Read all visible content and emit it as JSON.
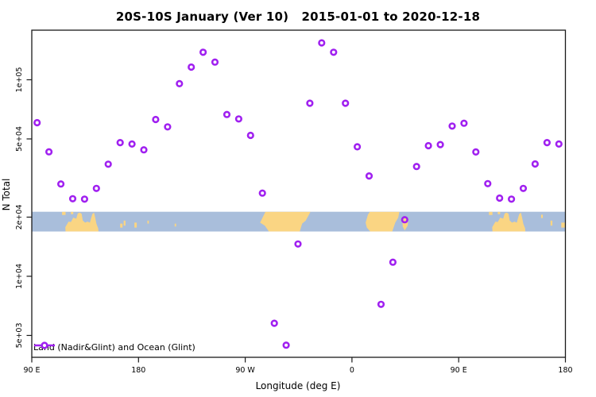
{
  "title": "20S-10S January (Ver 10)   2015-01-01 to 2020-12-18",
  "legend": {
    "label": "Land (Nadir&Glint) and Ocean (Glint)"
  },
  "chart_data": {
    "type": "scatter",
    "title": "20S-10S January (Ver 10)   2015-01-01 to 2020-12-18",
    "xlabel": "Longitude (deg E)",
    "ylabel": "N Total",
    "grid": false,
    "legend_position": "bottom-left",
    "marker": {
      "shape": "open-circle",
      "color": "#A020F0",
      "radius": 3.3,
      "stroke_width": 2.6
    },
    "x_axis": {
      "range": [
        90,
        540
      ],
      "ticks": [
        {
          "value": 90,
          "label": "90 E"
        },
        {
          "value": 180,
          "label": "180"
        },
        {
          "value": 270,
          "label": "90 W"
        },
        {
          "value": 360,
          "label": "0"
        },
        {
          "value": 450,
          "label": "90 E"
        },
        {
          "value": 540,
          "label": "180"
        }
      ]
    },
    "y_axis": {
      "scale": "log",
      "range": [
        3870,
        178800
      ],
      "ticks": [
        {
          "value": 100000,
          "label": "1e+05"
        },
        {
          "value": 50000,
          "label": "5e+04"
        },
        {
          "value": 20000,
          "label": "2e+04"
        },
        {
          "value": 10000,
          "label": "1e+04"
        },
        {
          "value": 5000,
          "label": "5e+03"
        }
      ]
    },
    "series": [
      {
        "name": "Land (Nadir&Glint) and Ocean (Glint)",
        "points": [
          [
            94.5,
            60500
          ],
          [
            104.5,
            43000
          ],
          [
            114.5,
            29500
          ],
          [
            124.5,
            24800
          ],
          [
            134.5,
            24700
          ],
          [
            144.5,
            28000
          ],
          [
            154.5,
            37200
          ],
          [
            164.5,
            47900
          ],
          [
            174.5,
            47100
          ],
          [
            184.5,
            44000
          ],
          [
            194.5,
            62800
          ],
          [
            204.5,
            57600
          ],
          [
            214.5,
            95500
          ],
          [
            224.5,
            116000
          ],
          [
            234.5,
            138000
          ],
          [
            244.5,
            123000
          ],
          [
            254.5,
            66600
          ],
          [
            264.5,
            63200
          ],
          [
            274.5,
            52100
          ],
          [
            284.5,
            26500
          ],
          [
            294.5,
            5770
          ],
          [
            304.5,
            4460
          ],
          [
            314.5,
            14600
          ],
          [
            324.5,
            76000
          ],
          [
            334.5,
            154000
          ],
          [
            344.5,
            138000
          ],
          [
            354.5,
            76000
          ],
          [
            364.5,
            45600
          ],
          [
            374.5,
            32400
          ],
          [
            384.5,
            7200
          ],
          [
            394.5,
            11800
          ],
          [
            404.5,
            19400
          ],
          [
            414.5,
            36200
          ],
          [
            424.5,
            46200
          ],
          [
            434.5,
            46800
          ],
          [
            444.5,
            58100
          ],
          [
            454.5,
            60100
          ],
          [
            464.5,
            42900
          ],
          [
            474.5,
            29600
          ],
          [
            484.5,
            25000
          ],
          [
            494.5,
            24700
          ],
          [
            504.5,
            28000
          ],
          [
            514.5,
            37300
          ],
          [
            524.5,
            47900
          ],
          [
            534.5,
            47100
          ]
        ]
      }
    ],
    "map_band": {
      "description": "20S-10S latitude strip of Earth drawn across the plot",
      "value_top": 21300,
      "value_bottom": 16900,
      "ocean_color": "#A9BEDB",
      "land_color": "#FAD583",
      "land_patches": [
        {
          "name": "timor-islands",
          "poly": [
            [
              115.5,
              0
            ],
            [
              118.5,
              0
            ],
            [
              118.5,
              0.16
            ],
            [
              115.5,
              0.16
            ]
          ]
        },
        {
          "name": "timor-islands-b",
          "poly": [
            [
              123,
              0
            ],
            [
              125,
              0
            ],
            [
              125,
              0.12
            ],
            [
              123,
              0.12
            ]
          ]
        },
        {
          "name": "australia",
          "poly": [
            [
              118.5,
              1
            ],
            [
              118.3,
              0.78
            ],
            [
              121,
              0.5
            ],
            [
              123,
              0.52
            ],
            [
              125,
              0.3
            ],
            [
              127.5,
              0.35
            ],
            [
              128.8,
              0.08
            ],
            [
              130.5,
              0.04
            ],
            [
              132,
              0.1
            ],
            [
              133,
              0.45
            ],
            [
              135,
              0.55
            ],
            [
              137,
              0.5
            ],
            [
              139,
              0.55
            ],
            [
              141,
              0.12
            ],
            [
              142.5,
              0.04
            ],
            [
              143.5,
              0.3
            ],
            [
              144.5,
              0.6
            ],
            [
              146,
              0.85
            ],
            [
              146.2,
              1
            ]
          ]
        },
        {
          "name": "new-caledonia",
          "poly": [
            [
              164.5,
              0.6
            ],
            [
              166.5,
              0.6
            ],
            [
              166.5,
              0.8
            ],
            [
              164.5,
              0.8
            ]
          ]
        },
        {
          "name": "vanuatu",
          "poly": [
            [
              167.5,
              0.45
            ],
            [
              169,
              0.45
            ],
            [
              169,
              0.7
            ],
            [
              167.5,
              0.7
            ]
          ]
        },
        {
          "name": "fiji",
          "poly": [
            [
              176.5,
              0.55
            ],
            [
              178.5,
              0.55
            ],
            [
              178.5,
              0.8
            ],
            [
              176.5,
              0.8
            ]
          ]
        },
        {
          "name": "samoa",
          "poly": [
            [
              187.5,
              0.45
            ],
            [
              188.7,
              0.45
            ],
            [
              188.7,
              0.6
            ],
            [
              187.5,
              0.6
            ]
          ]
        },
        {
          "name": "tahiti",
          "poly": [
            [
              210.5,
              0.6
            ],
            [
              211.7,
              0.6
            ],
            [
              211.7,
              0.75
            ],
            [
              210.5,
              0.75
            ]
          ]
        },
        {
          "name": "south-america",
          "poly": [
            [
              287,
              0
            ],
            [
              325,
              0
            ],
            [
              321,
              0.45
            ],
            [
              318,
              0.6
            ],
            [
              316,
              1
            ],
            [
              290,
              1
            ],
            [
              286.5,
              0.7
            ],
            [
              282.5,
              0.55
            ],
            [
              285,
              0.25
            ]
          ]
        },
        {
          "name": "africa",
          "poly": [
            [
              375,
              0
            ],
            [
              400,
              0
            ],
            [
              399,
              0.3
            ],
            [
              396.5,
              0.55
            ],
            [
              394,
              1
            ],
            [
              375.5,
              1
            ],
            [
              372.5,
              0.8
            ],
            [
              371.5,
              0.55
            ],
            [
              373.5,
              0.15
            ]
          ]
        },
        {
          "name": "madagascar",
          "poly": [
            [
              402.5,
              0.45
            ],
            [
              405.5,
              0.22
            ],
            [
              407.5,
              0.35
            ],
            [
              407,
              0.7
            ],
            [
              404.5,
              0.95
            ],
            [
              402.8,
              0.75
            ]
          ]
        },
        {
          "name": "timor-islands-2",
          "poly": [
            [
              475.5,
              0
            ],
            [
              478.5,
              0
            ],
            [
              478.5,
              0.16
            ],
            [
              475.5,
              0.16
            ]
          ]
        },
        {
          "name": "timor-islands-2b",
          "poly": [
            [
              483,
              0
            ],
            [
              485,
              0
            ],
            [
              485,
              0.12
            ],
            [
              483,
              0.12
            ]
          ]
        },
        {
          "name": "australia-2",
          "poly": [
            [
              478.5,
              1
            ],
            [
              478.3,
              0.78
            ],
            [
              481,
              0.5
            ],
            [
              483,
              0.52
            ],
            [
              485,
              0.3
            ],
            [
              487.5,
              0.35
            ],
            [
              488.8,
              0.08
            ],
            [
              490.5,
              0.04
            ],
            [
              492,
              0.1
            ],
            [
              493,
              0.45
            ],
            [
              495,
              0.55
            ],
            [
              497,
              0.5
            ],
            [
              499,
              0.55
            ],
            [
              501,
              0.12
            ],
            [
              502.5,
              0.04
            ],
            [
              503.5,
              0.3
            ],
            [
              504.5,
              0.6
            ],
            [
              506,
              0.85
            ],
            [
              506.2,
              1
            ]
          ]
        },
        {
          "name": "solomon-2",
          "poly": [
            [
              519.5,
              0.15
            ],
            [
              521,
              0.15
            ],
            [
              521,
              0.32
            ],
            [
              519.5,
              0.32
            ]
          ]
        },
        {
          "name": "vanuatu-2",
          "poly": [
            [
              527.5,
              0.45
            ],
            [
              529,
              0.45
            ],
            [
              529,
              0.7
            ],
            [
              527.5,
              0.7
            ]
          ]
        },
        {
          "name": "fiji-2",
          "poly": [
            [
              536.5,
              0.55
            ],
            [
              539.5,
              0.55
            ],
            [
              539.5,
              0.8
            ],
            [
              536.5,
              0.8
            ]
          ]
        }
      ]
    }
  }
}
